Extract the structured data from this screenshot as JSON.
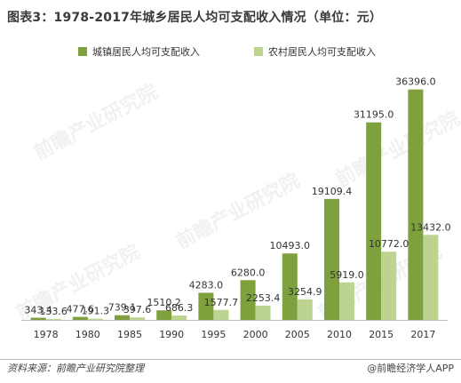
{
  "title": "图表3：1978-2017年城乡居民人均可支配收入情况（单位：元）",
  "watermark": "前瞻产业研究院",
  "footer": {
    "source": "资料来源：前瞻产业研究院整理",
    "brand": "@前瞻经济学人APP"
  },
  "colors": {
    "urban": "#7ea13e",
    "rural": "#bcd48f",
    "axis": "#bfbfbf"
  },
  "chart_data": {
    "type": "bar",
    "title": "图表3：1978-2017年城乡居民人均可支配收入情况（单位：元）",
    "categories": [
      "1978",
      "1980",
      "1985",
      "1990",
      "1995",
      "2000",
      "2005",
      "2010",
      "2015",
      "2017"
    ],
    "series": [
      {
        "name": "城镇居民人均可支配收入",
        "values": [
          343.4,
          477.6,
          739.1,
          1510.2,
          4283.0,
          6280.0,
          10493.0,
          19109.4,
          31195.0,
          36396.0
        ],
        "labels": [
          "343.4",
          "477.6",
          "739.1",
          "1510.2",
          "4283.0",
          "6280.0",
          "10493.0",
          "19109.4",
          "31195.0",
          "36396.0"
        ]
      },
      {
        "name": "农村居民人均可支配收入",
        "values": [
          133.6,
          191.3,
          397.6,
          686.3,
          1577.7,
          2253.4,
          3254.9,
          5919.0,
          10772.0,
          13432.0
        ],
        "labels": [
          "133.6",
          "191.3",
          "397.6",
          "686.3",
          "1577.7",
          "2253.4",
          "3254.9",
          "5919.0",
          "10772.0",
          "13432.0"
        ]
      }
    ],
    "ylim": [
      0,
      40000
    ],
    "grid": false,
    "legend": "top-center"
  }
}
